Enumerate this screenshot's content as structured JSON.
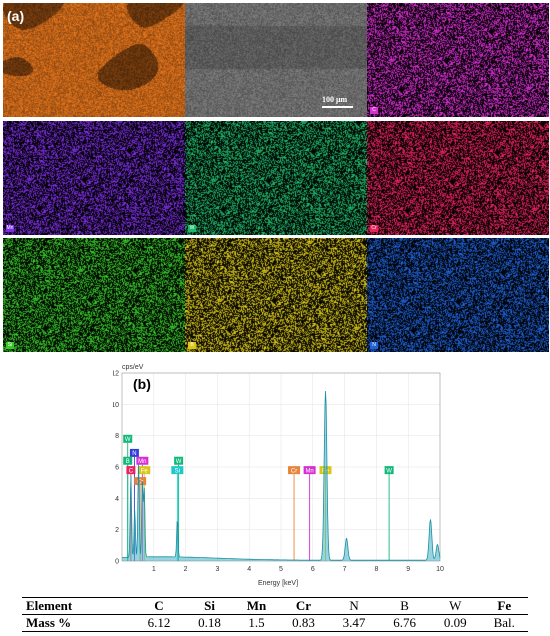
{
  "panel_a_label": "(a)",
  "panel_b_label": "(b)",
  "scale_bar_label": "100 μm",
  "maps": [
    {
      "element": "Fe",
      "color": "#e0731c"
    },
    {
      "element": "SEM",
      "color": "#6b6b6b"
    },
    {
      "element": "C",
      "color": "#d62fd2"
    },
    {
      "element": "Mn",
      "color": "#7b2fe0"
    },
    {
      "element": "W",
      "color": "#1fb86a"
    },
    {
      "element": "Cr",
      "color": "#e8245e"
    },
    {
      "element": "Si",
      "color": "#38c82a"
    },
    {
      "element": "B",
      "color": "#d9c619"
    },
    {
      "element": "N",
      "color": "#1f62d8"
    }
  ],
  "chart_data": {
    "type": "line",
    "ylabel": "cps/eV",
    "xlabel": "Energy [keV]",
    "xlim": [
      0,
      10
    ],
    "ylim": [
      0,
      12
    ],
    "xticks": [
      1,
      2,
      3,
      4,
      5,
      6,
      7,
      8,
      9,
      10
    ],
    "yticks": [
      0,
      2,
      4,
      6,
      8,
      10,
      12
    ],
    "grid": true,
    "peaks": [
      {
        "energy": 0.28,
        "height": 5.2
      },
      {
        "energy": 0.4,
        "height": 3.0
      },
      {
        "energy": 0.52,
        "height": 6.0
      },
      {
        "energy": 0.64,
        "height": 5.0
      },
      {
        "energy": 0.7,
        "height": 4.3
      },
      {
        "energy": 1.74,
        "height": 2.4
      },
      {
        "energy": 6.4,
        "height": 10.8
      },
      {
        "energy": 7.06,
        "height": 1.4
      },
      {
        "energy": 9.7,
        "height": 2.6
      },
      {
        "energy": 9.92,
        "height": 1.0
      }
    ],
    "markers": [
      {
        "label": "W",
        "energy": 0.18,
        "height": 7.8,
        "color": "#10b87a"
      },
      {
        "label": "N",
        "energy": 0.39,
        "height": 6.9,
        "color": "#2f3fd8"
      },
      {
        "label": "B",
        "energy": 0.18,
        "height": 6.4,
        "color": "#10b87a"
      },
      {
        "label": "Mn",
        "energy": 0.64,
        "height": 6.4,
        "color": "#d62fd2"
      },
      {
        "label": "C",
        "energy": 0.28,
        "height": 5.8,
        "color": "#e8245e"
      },
      {
        "label": "Fe",
        "energy": 0.7,
        "height": 5.8,
        "color": "#d9c619"
      },
      {
        "label": "Cr",
        "energy": 0.57,
        "height": 5.1,
        "color": "#e8843a"
      },
      {
        "label": "W",
        "energy": 1.78,
        "height": 6.4,
        "color": "#10b87a"
      },
      {
        "label": "Si",
        "energy": 1.74,
        "height": 5.8,
        "color": "#20c8c8"
      },
      {
        "label": "Cr",
        "energy": 5.41,
        "height": 5.8,
        "color": "#e8843a"
      },
      {
        "label": "Mn",
        "energy": 5.9,
        "height": 5.8,
        "color": "#d62fd2"
      },
      {
        "label": "Fe",
        "energy": 6.4,
        "height": 5.8,
        "color": "#d9c619"
      },
      {
        "label": "W",
        "energy": 8.4,
        "height": 5.8,
        "color": "#10b87a"
      }
    ]
  },
  "table": {
    "headers": [
      "Element",
      "C",
      "Si",
      "Mn",
      "Cr",
      "N",
      "B",
      "W",
      "Fe"
    ],
    "header_bold": [
      true,
      true,
      true,
      true,
      true,
      false,
      false,
      false,
      true
    ],
    "row_label": "Mass %",
    "values": [
      "6.12",
      "0.18",
      "1.5",
      "0.83",
      "3.47",
      "6.76",
      "0.09",
      "Bal."
    ]
  }
}
